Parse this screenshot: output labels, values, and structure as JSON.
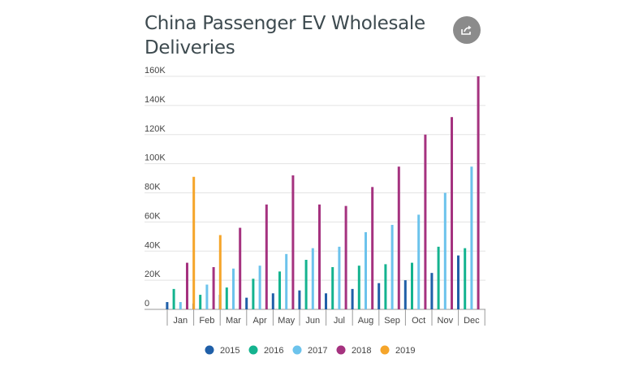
{
  "chart_data": {
    "type": "bar",
    "title": "China Passenger EV Wholesale Deliveries",
    "xlabel": "",
    "ylabel": "",
    "ylim": [
      0,
      160000
    ],
    "y_ticks": [
      0,
      20000,
      40000,
      60000,
      80000,
      100000,
      120000,
      140000,
      160000
    ],
    "y_tick_labels": [
      "0",
      "20K",
      "40K",
      "60K",
      "80K",
      "100K",
      "120K",
      "140K",
      "160K"
    ],
    "categories": [
      "Jan",
      "Feb",
      "Mar",
      "Apr",
      "May",
      "Jun",
      "Jul",
      "Aug",
      "Sep",
      "Oct",
      "Nov",
      "Dec"
    ],
    "grid": true,
    "legend_position": "bottom",
    "series": [
      {
        "name": "2015",
        "color": "#1f5fa8",
        "values": [
          5000,
          4000,
          10000,
          8000,
          11000,
          13000,
          11000,
          14000,
          18000,
          20000,
          25000,
          37000
        ]
      },
      {
        "name": "2016",
        "color": "#14b38f",
        "values": [
          14000,
          10000,
          15000,
          21000,
          26000,
          34000,
          29000,
          30000,
          31000,
          32000,
          43000,
          42000
        ]
      },
      {
        "name": "2017",
        "color": "#6cc3ec",
        "values": [
          5000,
          17000,
          28000,
          30000,
          38000,
          42000,
          43000,
          53000,
          58000,
          65000,
          80000,
          98000
        ]
      },
      {
        "name": "2018",
        "color": "#a5327f",
        "values": [
          32000,
          29000,
          56000,
          72000,
          92000,
          72000,
          71000,
          84000,
          98000,
          120000,
          132000,
          160000
        ]
      },
      {
        "name": "2019",
        "color": "#f5a52a",
        "values": [
          91000,
          51000,
          null,
          null,
          null,
          null,
          null,
          null,
          null,
          null,
          null,
          null
        ]
      }
    ]
  },
  "ui": {
    "share_icon": "share-icon"
  }
}
